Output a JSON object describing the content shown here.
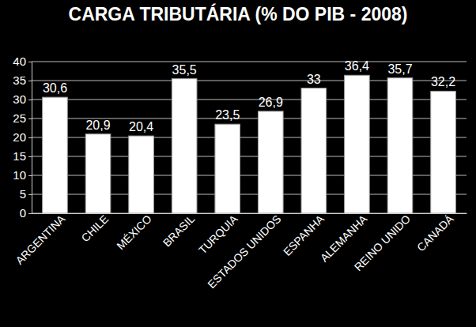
{
  "chart_data": {
    "type": "bar",
    "title": "CARGA TRIBUTÁRIA (% DO PIB - 2008)",
    "categories": [
      "ARGENTINA",
      "CHILE",
      "MÉXICO",
      "BRASIL",
      "TURQUIA",
      "ESTADOS UNIDOS",
      "ESPANHA",
      "ALEMANHA",
      "REINO UNIDO",
      "CANADÁ"
    ],
    "values": [
      30.6,
      20.9,
      20.4,
      35.5,
      23.5,
      26.9,
      33,
      36.4,
      35.7,
      32.2
    ],
    "value_labels": [
      "30,6",
      "20,9",
      "20,4",
      "35,5",
      "23,5",
      "26,9",
      "33",
      "36,4",
      "35,7",
      "32,2"
    ],
    "color": "#ffffff",
    "ylim": [
      0,
      40
    ],
    "yticks": [
      0,
      5,
      10,
      15,
      20,
      25,
      30,
      35,
      40
    ],
    "grid": true,
    "data_labels": true
  }
}
